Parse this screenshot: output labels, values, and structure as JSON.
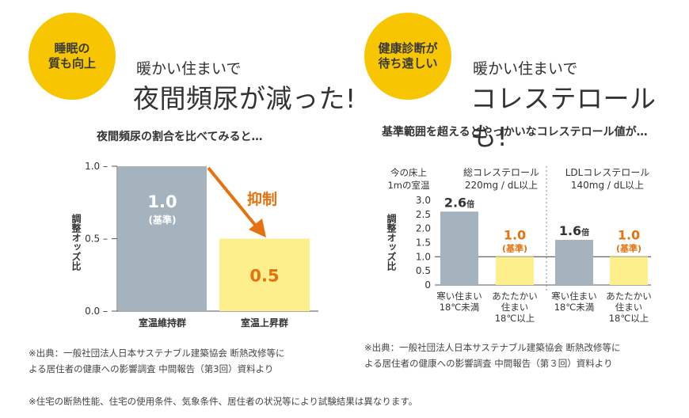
{
  "colors": {
    "yellow": "#f7c600",
    "gray_bar": "#a5b3bf",
    "light_yellow": "#fdf08c",
    "orange": "#e5720e"
  },
  "left": {
    "badge": "睡眠の\n質も向上",
    "lead": "暖かい住まいで",
    "headline": "夜間頻尿が減った!",
    "subtitle": "夜間頻尿の割合を比べてみると…",
    "arrow_label": "抑制",
    "note_line1": "※出典：一般社団法人日本サステナブル建築協会 断熱改修等に",
    "note_line2": "よる居住者の健康への影響調査 中間報告（第3回）資料より"
  },
  "right": {
    "badge": "健康診断が\n待ち遠しい",
    "lead": "暖かい住まいで",
    "headline": "コレステロールも!",
    "subtitle": "基準範囲を超えるとやっかいなコレステロール値が…",
    "note_line1": "※出典：一般社団法人日本サステナブル建築協会 断熱改修等に",
    "note_line2": "よる居住者の健康への影響調査 中間報告（第３回）資料より"
  },
  "footer_note": "※住宅の断熱性能、住宅の使用条件、気象条件、居住者の状況等により試験結果は異なります。",
  "chart_data": [
    {
      "type": "bar",
      "categories": [
        "室温維持群",
        "室温上昇群"
      ],
      "values": [
        1.0,
        0.5
      ],
      "data_labels": [
        "1.0",
        "0.5"
      ],
      "data_sublabels": [
        "(基準)",
        ""
      ],
      "ylabel": "調整オッズ比",
      "ylim": [
        0.0,
        1.0
      ],
      "yticks": [
        "0.0",
        "0.5",
        "1.0"
      ],
      "annotation": "抑制"
    },
    {
      "type": "bar",
      "room_temp_label_line1": "今の床上",
      "room_temp_label_line2": "1mの室温",
      "ylabel": "調整オッズ比",
      "ylim": [
        0,
        3.0
      ],
      "yticks": [
        "0",
        "0.5",
        "1.0",
        "1.5",
        "2.0",
        "2.5",
        "3.0"
      ],
      "reference_line": 1.0,
      "groups": [
        {
          "title_line1": "総コレステロール",
          "title_line2": "220mg / dL以上",
          "categories": [
            [
              "寒い住まい",
              "18℃未満"
            ],
            [
              "あたたかい",
              "住まい",
              "18℃以上"
            ]
          ],
          "values": [
            2.6,
            1.0
          ],
          "labels": [
            {
              "num": "2.6",
              "unit": "倍",
              "sub": ""
            },
            {
              "num": "1.0",
              "unit": "",
              "sub": "(基準)"
            }
          ]
        },
        {
          "title_line1": "LDLコレステロール",
          "title_line2": "140mg / dL以上",
          "categories": [
            [
              "寒い住まい",
              "18℃未満"
            ],
            [
              "あたたかい",
              "住まい",
              "18℃以上"
            ]
          ],
          "values": [
            1.6,
            1.0
          ],
          "labels": [
            {
              "num": "1.6",
              "unit": "倍",
              "sub": ""
            },
            {
              "num": "1.0",
              "unit": "",
              "sub": "(基準)"
            }
          ]
        }
      ]
    }
  ]
}
